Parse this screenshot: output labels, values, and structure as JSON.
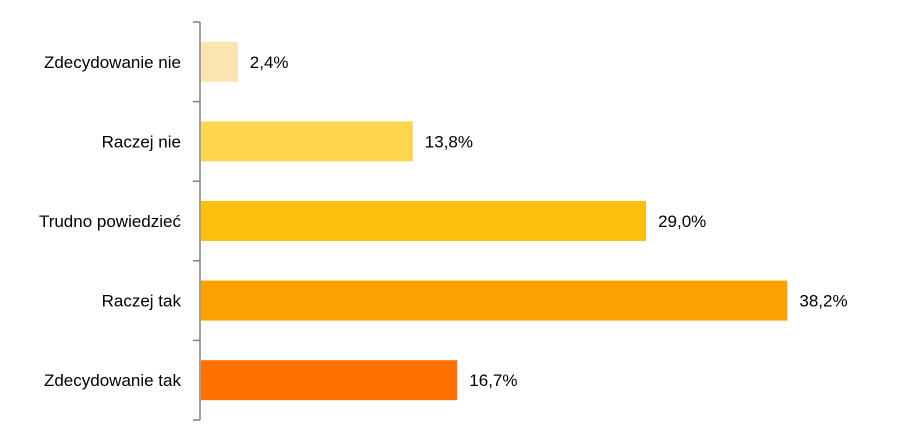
{
  "chart_data": {
    "type": "bar",
    "orientation": "horizontal",
    "categories": [
      "Zdecydowanie nie",
      "Raczej nie",
      "Trudno powiedzieć",
      "Raczej tak",
      "Zdecydowanie tak"
    ],
    "values": [
      2.4,
      13.8,
      29.0,
      38.2,
      16.7
    ],
    "value_labels": [
      "2,4%",
      "13,8%",
      "29,0%",
      "38,2%",
      "16,7%"
    ],
    "colors": [
      "#FCE4B0",
      "#FFD44F",
      "#FDBF0D",
      "#FCA200",
      "#FF7100"
    ],
    "axis_color": "#808080",
    "xlim": [
      0,
      40
    ],
    "grid": false,
    "legend": "none",
    "title": "",
    "xlabel": "",
    "ylabel": ""
  }
}
